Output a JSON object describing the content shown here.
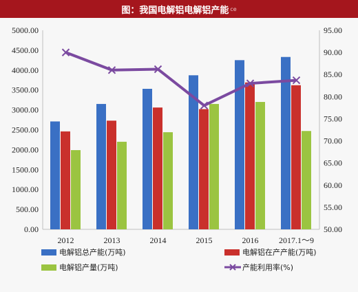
{
  "header": {
    "title": "图：我国电解铝电解铝产能",
    "watermark": "ce"
  },
  "chart_data": {
    "type": "bar",
    "categories": [
      "2012",
      "2013",
      "2014",
      "2015",
      "2016",
      "2017.1～9"
    ],
    "series": [
      {
        "name": "电解铝总产能(万吨)",
        "type": "bar",
        "axis": "left",
        "color": "#3a70c4",
        "values": [
          2710,
          3150,
          3530,
          3870,
          4250,
          4330
        ]
      },
      {
        "name": "电解铝在产产能(万吨)",
        "type": "bar",
        "axis": "left",
        "color": "#c9302c",
        "values": [
          2460,
          2730,
          3060,
          3020,
          3690,
          3620
        ]
      },
      {
        "name": "电解铝产量(万吨)",
        "type": "bar",
        "axis": "left",
        "color": "#9bc441",
        "values": [
          1990,
          2200,
          2440,
          3150,
          3200,
          2470
        ]
      },
      {
        "name": "产能利用率(%)",
        "type": "line",
        "axis": "right",
        "color": "#7b4aa0",
        "values": [
          90.0,
          86.0,
          86.2,
          78.0,
          83.0,
          83.7
        ]
      }
    ],
    "ylim": [
      0,
      5000
    ],
    "y2lim": [
      50,
      95
    ],
    "yticks": [
      "0.00",
      "500.00",
      "1000.00",
      "1500.00",
      "2000.00",
      "2500.00",
      "3000.00",
      "3500.00",
      "4000.00",
      "4500.00",
      "5000.00"
    ],
    "y2ticks": [
      "50.00",
      "55.00",
      "60.00",
      "65.00",
      "70.00",
      "75.00",
      "80.00",
      "85.00",
      "90.00",
      "95.00"
    ],
    "legend_position": "bottom",
    "grid": false
  }
}
